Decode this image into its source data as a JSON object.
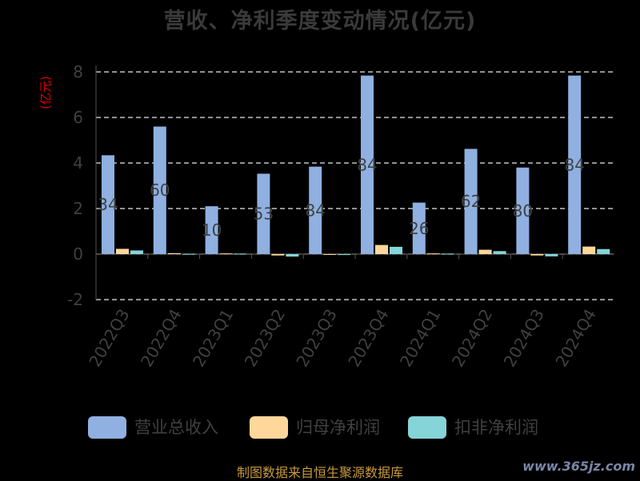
{
  "chart_data": {
    "type": "bar",
    "title": "营收、净利季度变动情况(亿元)",
    "ylabel": "(亿元)",
    "ylim": [
      -2,
      8
    ],
    "yticks": [
      "8",
      "6",
      "4",
      "2",
      "0",
      "-2"
    ],
    "categories": [
      "2022Q3",
      "2022Q4",
      "2023Q1",
      "2023Q2",
      "2023Q3",
      "2023Q4",
      "2024Q1",
      "2024Q2",
      "2024Q3",
      "2024Q4"
    ],
    "series": [
      {
        "name": "营业总收入",
        "color": "#8fb0e0",
        "values": [
          4.34,
          5.6,
          2.1,
          3.53,
          3.84,
          7.84,
          2.26,
          4.62,
          3.8,
          7.84
        ]
      },
      {
        "name": "归母净利润",
        "color": "#ffd79a",
        "values": [
          0.23,
          0.04,
          0.03,
          -0.06,
          -0.02,
          0.4,
          0.03,
          0.19,
          -0.06,
          0.33
        ]
      },
      {
        "name": "扣非净利润",
        "color": "#85d4d8",
        "values": [
          0.16,
          0.01,
          0.02,
          -0.11,
          -0.04,
          0.32,
          0.02,
          0.13,
          -0.1,
          0.22
        ]
      }
    ],
    "data_labels": [
      "34",
      "60",
      "10",
      "53",
      "84",
      "84",
      "26",
      "62",
      "80",
      "84"
    ],
    "grid": true,
    "legend_position": "bottom"
  },
  "footer": {
    "source": "制图数据来自恒生聚源数据库",
    "watermark": "www.365jz.com"
  }
}
